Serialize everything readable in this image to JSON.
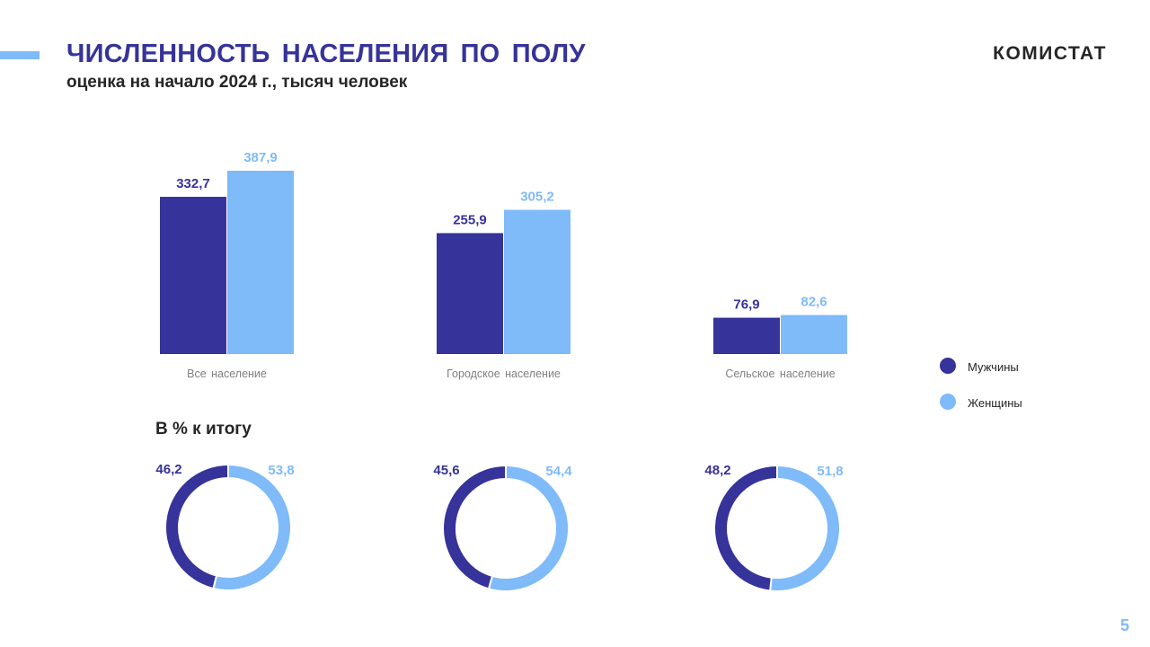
{
  "header": {
    "title": "ЧИСЛЕННОСТЬ НАСЕЛЕНИЯ ПО ПОЛУ",
    "subtitle": "оценка на начало 2024 г., тысяч человек",
    "brand": "КОМИСТАТ"
  },
  "pie_section_title": "В % к итогу",
  "page_number": "5",
  "colors": {
    "men": "#36339a",
    "women": "#7fbaf9",
    "category_label": "#7f7f7f"
  },
  "chart_data": [
    {
      "type": "bar",
      "title": "ЧИСЛЕННОСТЬ НАСЕЛЕНИЯ ПО ПОЛУ",
      "subtitle": "оценка на начало 2024 г., тысяч человек",
      "categories": [
        "Все население",
        "Городское население",
        "Сельское население"
      ],
      "series": [
        {
          "name": "Мужчины",
          "values": [
            332.7,
            255.9,
            76.9
          ],
          "labels": [
            "332,7",
            "255,9",
            "76,9"
          ]
        },
        {
          "name": "Женщины",
          "values": [
            387.9,
            305.2,
            82.6
          ],
          "labels": [
            "387,9",
            "305,2",
            "82,6"
          ]
        }
      ],
      "ylim": [
        0,
        387.9
      ],
      "grid": false,
      "legend": "right"
    },
    {
      "type": "pie",
      "title": "В % к итогу",
      "variant": "donut",
      "charts": [
        {
          "category": "Все население",
          "slices": [
            {
              "name": "Мужчины",
              "value": 46.2,
              "label": "46,2"
            },
            {
              "name": "Женщины",
              "value": 53.8,
              "label": "53,8"
            }
          ]
        },
        {
          "category": "Городское население",
          "slices": [
            {
              "name": "Мужчины",
              "value": 45.6,
              "label": "45,6"
            },
            {
              "name": "Женщины",
              "value": 54.4,
              "label": "54,4"
            }
          ]
        },
        {
          "category": "Сельское население",
          "slices": [
            {
              "name": "Мужчины",
              "value": 48.2,
              "label": "48,2"
            },
            {
              "name": "Женщины",
              "value": 51.8,
              "label": "51,8"
            }
          ]
        }
      ]
    }
  ]
}
